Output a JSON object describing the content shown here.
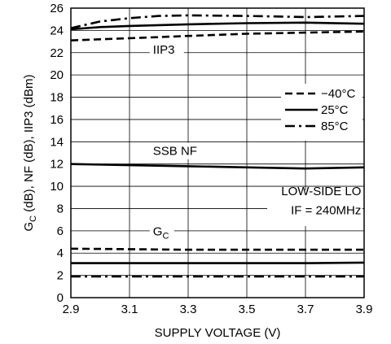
{
  "chart_data": {
    "type": "line",
    "xlabel": "SUPPLY VOLTAGE (V)",
    "ylabel_parts": [
      "G",
      "C",
      " (dB), NF (dB), IIP3 (dBm)"
    ],
    "xlim": [
      2.9,
      3.9
    ],
    "ylim": [
      0,
      26
    ],
    "x_ticks": [
      2.9,
      3.1,
      3.3,
      3.5,
      3.7,
      3.9
    ],
    "x_tick_labels": [
      "2.9",
      "3.1",
      "3.3",
      "3.5",
      "3.7",
      "3.9"
    ],
    "y_ticks": [
      0,
      2,
      4,
      6,
      8,
      10,
      12,
      14,
      16,
      18,
      20,
      22,
      24,
      26
    ],
    "y_tick_labels": [
      "0",
      "2",
      "4",
      "6",
      "8",
      "10",
      "12",
      "14",
      "16",
      "18",
      "20",
      "22",
      "24",
      "26"
    ],
    "grid": true,
    "legend_placement": "right",
    "legend": [
      {
        "label": "−40°C",
        "style": "dashed"
      },
      {
        "label": "25°C",
        "style": "solid"
      },
      {
        "label": "85°C",
        "style": "dashdot"
      }
    ],
    "curve_labels": [
      {
        "text": "IIP3",
        "x": 3.18,
        "y": 21.9
      },
      {
        "text": "SSB NF",
        "x": 3.18,
        "y": 12.8
      }
    ],
    "gc_label": {
      "main": "G",
      "sub": "C",
      "x": 3.18,
      "y": 5.6
    },
    "annotations": [
      {
        "text": "LOW-SIDE LO",
        "x": 3.89,
        "y": 9.2
      },
      {
        "text": "IF = 240MHz",
        "x": 3.89,
        "y": 7.5
      }
    ],
    "series": [
      {
        "name": "IIP3 -40°C",
        "style": "dashed",
        "x": [
          2.9,
          3.0,
          3.1,
          3.3,
          3.5,
          3.7,
          3.9
        ],
        "y": [
          23.1,
          23.2,
          23.3,
          23.5,
          23.7,
          23.8,
          23.9
        ]
      },
      {
        "name": "IIP3 25°C",
        "style": "solid",
        "x": [
          2.9,
          3.0,
          3.1,
          3.3,
          3.5,
          3.7,
          3.9
        ],
        "y": [
          24.1,
          24.3,
          24.4,
          24.55,
          24.65,
          24.7,
          24.6
        ]
      },
      {
        "name": "IIP3 85°C",
        "style": "dashdot",
        "x": [
          2.9,
          3.0,
          3.1,
          3.2,
          3.3,
          3.5,
          3.7,
          3.9
        ],
        "y": [
          24.2,
          24.8,
          25.1,
          25.3,
          25.35,
          25.3,
          25.2,
          25.3
        ]
      },
      {
        "name": "SSB NF",
        "style": "solid",
        "x": [
          2.9,
          3.1,
          3.3,
          3.5,
          3.7,
          3.9
        ],
        "y": [
          12.0,
          11.9,
          11.8,
          11.7,
          11.6,
          11.7
        ]
      },
      {
        "name": "GC -40°C",
        "style": "dashed",
        "x": [
          2.9,
          3.1,
          3.3,
          3.5,
          3.7,
          3.9
        ],
        "y": [
          4.4,
          4.35,
          4.3,
          4.3,
          4.3,
          4.3
        ]
      },
      {
        "name": "GC 25°C",
        "style": "solid",
        "x": [
          2.9,
          3.1,
          3.3,
          3.5,
          3.7,
          3.9
        ],
        "y": [
          3.1,
          3.1,
          3.1,
          3.1,
          3.1,
          3.15
        ]
      },
      {
        "name": "GC 85°C",
        "style": "dashdot",
        "x": [
          2.9,
          3.1,
          3.3,
          3.5,
          3.7,
          3.9
        ],
        "y": [
          1.9,
          1.9,
          1.9,
          1.9,
          1.9,
          1.9
        ]
      }
    ]
  }
}
